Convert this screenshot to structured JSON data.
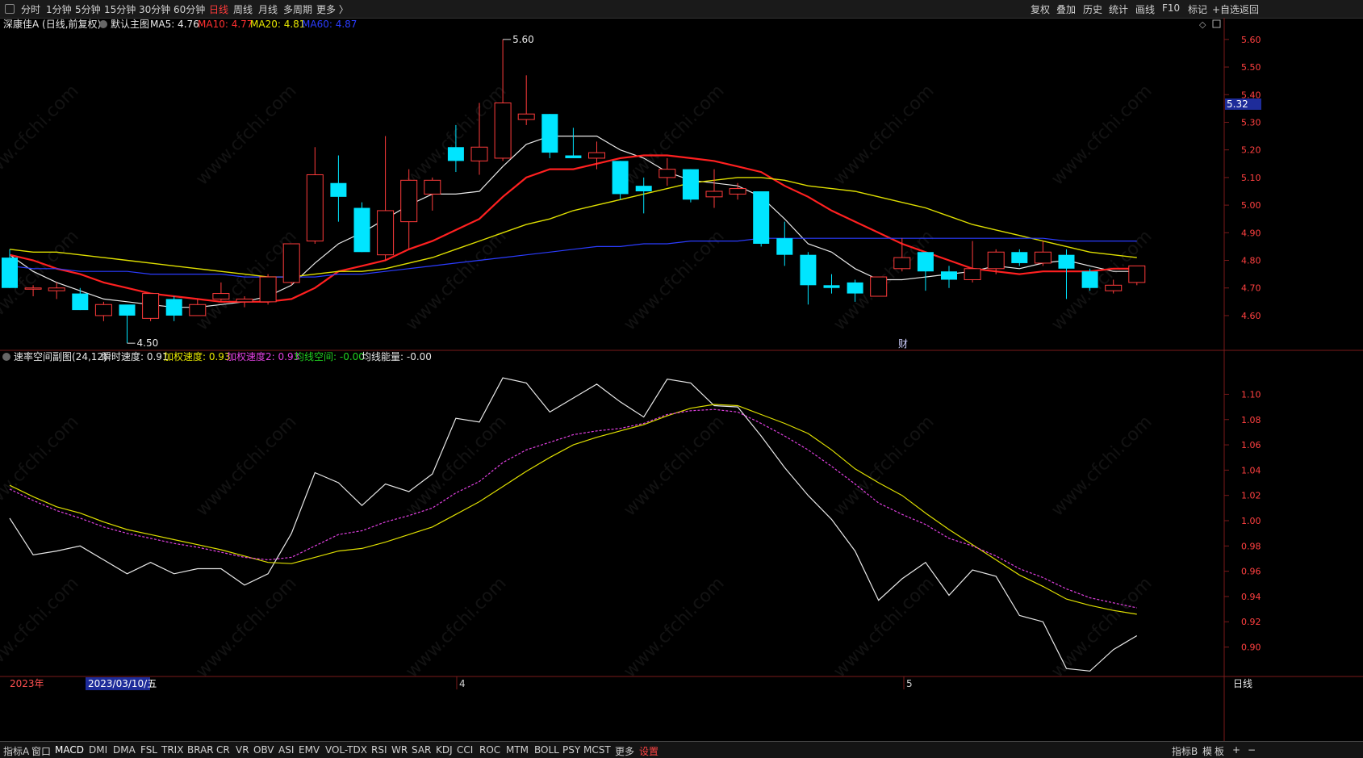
{
  "toolbar": {
    "periods": [
      {
        "label": "分时",
        "active": false
      },
      {
        "label": "1分钟",
        "active": false
      },
      {
        "label": "5分钟",
        "active": false
      },
      {
        "label": "15分钟",
        "active": false
      },
      {
        "label": "30分钟",
        "active": false
      },
      {
        "label": "60分钟",
        "active": false
      },
      {
        "label": "日线",
        "active": true
      },
      {
        "label": "周线",
        "active": false
      },
      {
        "label": "月线",
        "active": false
      },
      {
        "label": "多周期",
        "active": false
      },
      {
        "label": "更多 〉",
        "active": false
      }
    ],
    "right_buttons": [
      "复权",
      "叠加",
      "历史",
      "统计",
      "画线",
      "F10",
      "标记",
      "+自选",
      "返回"
    ]
  },
  "main_panel": {
    "stock_label": "深康佳A (日线,前复权)",
    "main_chart_label": "默认主图",
    "ma_items": [
      {
        "label": "MA5: 4.76",
        "color": "#e8e8e8"
      },
      {
        "label": "MA10: 4.77",
        "color": "#ff3030"
      },
      {
        "label": "MA20: 4.81",
        "color": "#e6e600"
      },
      {
        "label": "MA60: 4.87",
        "color": "#2b3cff"
      }
    ],
    "high_label": "5.60",
    "low_label": "4.50",
    "price_tag": "5.32",
    "event_marker": "财"
  },
  "sub_panel": {
    "indicator_label": "速率空间副图(24,12)",
    "items": [
      {
        "label": "瞬时速度: 0.91",
        "color": "#e8e8e8"
      },
      {
        "label": "加权速度: 0.93",
        "color": "#e6e600"
      },
      {
        "label": "加权速度2: 0.93",
        "color": "#e040e0"
      },
      {
        "label": "均线空间: -0.00",
        "color": "#20d020"
      },
      {
        "label": "均线能量: -0.00",
        "color": "#e8e8e8"
      }
    ]
  },
  "date_axis": {
    "year_label": "2023年",
    "cursor_date": "2023/03/10/五",
    "month_labels": [
      "4",
      "5"
    ]
  },
  "right_axis_label": "日线",
  "watermark": "www.cfchi.com",
  "colors": {
    "up": "#ff3b3b",
    "down": "#00e5ff",
    "ma5": "#e8e8e8",
    "ma10": "#ff2020",
    "ma20": "#dede00",
    "ma60": "#2b3cff",
    "grid_border": "#7a1a1a"
  },
  "chart_data": [
    {
      "type": "candlestick",
      "title": "深康佳A (日线,前复权)",
      "y_ticks": [
        5.6,
        5.5,
        5.4,
        5.3,
        5.2,
        5.1,
        5.0,
        4.9,
        4.8,
        4.7,
        4.6
      ],
      "ylim": [
        4.48,
        5.62
      ],
      "candles": [
        {
          "o": 4.81,
          "h": 4.84,
          "l": 4.7,
          "c": 4.7
        },
        {
          "o": 4.7,
          "h": 4.71,
          "l": 4.67,
          "c": 4.7
        },
        {
          "o": 4.69,
          "h": 4.72,
          "l": 4.66,
          "c": 4.7
        },
        {
          "o": 4.68,
          "h": 4.7,
          "l": 4.62,
          "c": 4.62
        },
        {
          "o": 4.6,
          "h": 4.65,
          "l": 4.58,
          "c": 4.64
        },
        {
          "o": 4.64,
          "h": 4.63,
          "l": 4.5,
          "c": 4.6
        },
        {
          "o": 4.59,
          "h": 4.68,
          "l": 4.58,
          "c": 4.68
        },
        {
          "o": 4.66,
          "h": 4.67,
          "l": 4.58,
          "c": 4.6
        },
        {
          "o": 4.6,
          "h": 4.66,
          "l": 4.6,
          "c": 4.64
        },
        {
          "o": 4.66,
          "h": 4.72,
          "l": 4.65,
          "c": 4.68
        },
        {
          "o": 4.65,
          "h": 4.67,
          "l": 4.63,
          "c": 4.66
        },
        {
          "o": 4.65,
          "h": 4.75,
          "l": 4.64,
          "c": 4.74
        },
        {
          "o": 4.72,
          "h": 4.86,
          "l": 4.71,
          "c": 4.86
        },
        {
          "o": 4.87,
          "h": 5.21,
          "l": 4.86,
          "c": 5.11
        },
        {
          "o": 5.08,
          "h": 5.18,
          "l": 4.94,
          "c": 5.03
        },
        {
          "o": 4.99,
          "h": 5.01,
          "l": 4.83,
          "c": 4.83
        },
        {
          "o": 4.82,
          "h": 5.25,
          "l": 4.8,
          "c": 4.98
        },
        {
          "o": 4.94,
          "h": 5.13,
          "l": 4.84,
          "c": 5.09
        },
        {
          "o": 5.04,
          "h": 5.1,
          "l": 4.98,
          "c": 5.09
        },
        {
          "o": 5.21,
          "h": 5.29,
          "l": 5.12,
          "c": 5.16
        },
        {
          "o": 5.16,
          "h": 5.37,
          "l": 5.11,
          "c": 5.21
        },
        {
          "o": 5.17,
          "h": 5.6,
          "l": 5.16,
          "c": 5.37
        },
        {
          "o": 5.31,
          "h": 5.47,
          "l": 5.29,
          "c": 5.33
        },
        {
          "o": 5.33,
          "h": 5.33,
          "l": 5.17,
          "c": 5.19
        },
        {
          "o": 5.18,
          "h": 5.28,
          "l": 5.17,
          "c": 5.17
        },
        {
          "o": 5.17,
          "h": 5.23,
          "l": 5.13,
          "c": 5.19
        },
        {
          "o": 5.16,
          "h": 5.16,
          "l": 5.02,
          "c": 5.04
        },
        {
          "o": 5.07,
          "h": 5.1,
          "l": 4.97,
          "c": 5.05
        },
        {
          "o": 5.1,
          "h": 5.17,
          "l": 5.07,
          "c": 5.13
        },
        {
          "o": 5.13,
          "h": 5.13,
          "l": 5.01,
          "c": 5.02
        },
        {
          "o": 5.03,
          "h": 5.13,
          "l": 4.99,
          "c": 5.05
        },
        {
          "o": 5.04,
          "h": 5.08,
          "l": 5.02,
          "c": 5.06
        },
        {
          "o": 5.05,
          "h": 5.05,
          "l": 4.85,
          "c": 4.86
        },
        {
          "o": 4.88,
          "h": 4.94,
          "l": 4.78,
          "c": 4.82
        },
        {
          "o": 4.82,
          "h": 4.83,
          "l": 4.64,
          "c": 4.71
        },
        {
          "o": 4.71,
          "h": 4.75,
          "l": 4.68,
          "c": 4.7
        },
        {
          "o": 4.72,
          "h": 4.73,
          "l": 4.65,
          "c": 4.68
        },
        {
          "o": 4.67,
          "h": 4.74,
          "l": 4.67,
          "c": 4.74
        },
        {
          "o": 4.77,
          "h": 4.88,
          "l": 4.76,
          "c": 4.81
        },
        {
          "o": 4.83,
          "h": 4.83,
          "l": 4.69,
          "c": 4.76
        },
        {
          "o": 4.76,
          "h": 4.78,
          "l": 4.7,
          "c": 4.73
        },
        {
          "o": 4.73,
          "h": 4.87,
          "l": 4.72,
          "c": 4.77
        },
        {
          "o": 4.77,
          "h": 4.84,
          "l": 4.75,
          "c": 4.83
        },
        {
          "o": 4.83,
          "h": 4.84,
          "l": 4.78,
          "c": 4.79
        },
        {
          "o": 4.79,
          "h": 4.87,
          "l": 4.78,
          "c": 4.83
        },
        {
          "o": 4.82,
          "h": 4.84,
          "l": 4.66,
          "c": 4.77
        },
        {
          "o": 4.76,
          "h": 4.77,
          "l": 4.69,
          "c": 4.7
        },
        {
          "o": 4.69,
          "h": 4.73,
          "l": 4.68,
          "c": 4.71
        },
        {
          "o": 4.72,
          "h": 4.78,
          "l": 4.71,
          "c": 4.78
        }
      ],
      "ma": [
        {
          "name": "MA5",
          "values": [
            4.82,
            4.76,
            4.72,
            4.69,
            4.66,
            4.65,
            4.64,
            4.63,
            4.63,
            4.64,
            4.65,
            4.67,
            4.71,
            4.79,
            4.86,
            4.9,
            4.95,
            5.0,
            5.04,
            5.04,
            5.05,
            5.14,
            5.22,
            5.25,
            5.25,
            5.25,
            5.2,
            5.17,
            5.12,
            5.09,
            5.08,
            5.07,
            5.03,
            4.95,
            4.86,
            4.83,
            4.77,
            4.73,
            4.73,
            4.74,
            4.75,
            4.76,
            4.78,
            4.77,
            4.79,
            4.8,
            4.78,
            4.76,
            4.76
          ]
        },
        {
          "name": "MA10",
          "values": [
            4.82,
            4.8,
            4.77,
            4.75,
            4.72,
            4.7,
            4.68,
            4.67,
            4.66,
            4.65,
            4.65,
            4.65,
            4.66,
            4.7,
            4.76,
            4.78,
            4.8,
            4.84,
            4.87,
            4.91,
            4.95,
            5.03,
            5.1,
            5.13,
            5.13,
            5.15,
            5.17,
            5.18,
            5.18,
            5.17,
            5.16,
            5.14,
            5.12,
            5.07,
            5.03,
            4.98,
            4.94,
            4.9,
            4.86,
            4.83,
            4.8,
            4.77,
            4.76,
            4.75,
            4.76,
            4.76,
            4.76,
            4.77,
            4.77
          ]
        },
        {
          "name": "MA20",
          "values": [
            4.84,
            4.83,
            4.83,
            4.82,
            4.81,
            4.8,
            4.79,
            4.78,
            4.77,
            4.76,
            4.75,
            4.74,
            4.74,
            4.75,
            4.76,
            4.76,
            4.77,
            4.79,
            4.81,
            4.84,
            4.87,
            4.9,
            4.93,
            4.95,
            4.98,
            5.0,
            5.02,
            5.04,
            5.06,
            5.08,
            5.09,
            5.1,
            5.1,
            5.09,
            5.07,
            5.06,
            5.05,
            5.03,
            5.01,
            4.99,
            4.96,
            4.93,
            4.91,
            4.89,
            4.87,
            4.85,
            4.83,
            4.82,
            4.81
          ]
        },
        {
          "name": "MA60",
          "values": [
            4.78,
            4.77,
            4.77,
            4.76,
            4.76,
            4.76,
            4.75,
            4.75,
            4.75,
            4.75,
            4.74,
            4.74,
            4.74,
            4.74,
            4.75,
            4.75,
            4.76,
            4.77,
            4.78,
            4.79,
            4.8,
            4.81,
            4.82,
            4.83,
            4.84,
            4.85,
            4.85,
            4.86,
            4.86,
            4.87,
            4.87,
            4.87,
            4.88,
            4.88,
            4.88,
            4.88,
            4.88,
            4.88,
            4.88,
            4.88,
            4.88,
            4.88,
            4.88,
            4.88,
            4.88,
            4.87,
            4.87,
            4.87,
            4.87
          ]
        }
      ]
    },
    {
      "type": "line",
      "title": "速率空间副图(24,12)",
      "y_ticks": [
        1.1,
        1.08,
        1.06,
        1.04,
        1.02,
        1.0,
        0.98,
        0.96,
        0.94,
        0.92,
        0.9
      ],
      "ylim": [
        0.878,
        1.122
      ],
      "series": [
        {
          "name": "瞬时速度",
          "values": [
            1.002,
            0.973,
            0.976,
            0.98,
            0.969,
            0.958,
            0.967,
            0.958,
            0.962,
            0.962,
            0.949,
            0.958,
            0.99,
            1.038,
            1.03,
            1.012,
            1.029,
            1.023,
            1.037,
            1.081,
            1.078,
            1.113,
            1.109,
            1.086,
            1.097,
            1.108,
            1.094,
            1.082,
            1.112,
            1.109,
            1.091,
            1.09,
            1.067,
            1.042,
            1.02,
            1.001,
            0.976,
            0.937,
            0.954,
            0.967,
            0.941,
            0.961,
            0.956,
            0.925,
            0.92,
            0.883,
            0.881,
            0.898,
            0.909
          ]
        },
        {
          "name": "加权速度",
          "values": [
            1.028,
            1.019,
            1.011,
            1.006,
            0.999,
            0.993,
            0.989,
            0.985,
            0.981,
            0.977,
            0.972,
            0.967,
            0.966,
            0.971,
            0.976,
            0.978,
            0.983,
            0.989,
            0.995,
            1.005,
            1.015,
            1.027,
            1.039,
            1.05,
            1.06,
            1.066,
            1.071,
            1.076,
            1.083,
            1.089,
            1.092,
            1.091,
            1.084,
            1.077,
            1.069,
            1.056,
            1.041,
            1.03,
            1.02,
            1.006,
            0.993,
            0.981,
            0.969,
            0.957,
            0.948,
            0.938,
            0.933,
            0.929,
            0.926
          ]
        },
        {
          "name": "加权速度2",
          "values": [
            1.025,
            1.016,
            1.008,
            1.002,
            0.995,
            0.99,
            0.986,
            0.982,
            0.979,
            0.975,
            0.971,
            0.969,
            0.971,
            0.98,
            0.989,
            0.992,
            0.999,
            1.004,
            1.01,
            1.022,
            1.031,
            1.046,
            1.056,
            1.062,
            1.068,
            1.071,
            1.073,
            1.077,
            1.084,
            1.087,
            1.088,
            1.086,
            1.077,
            1.067,
            1.056,
            1.043,
            1.029,
            1.014,
            1.005,
            0.997,
            0.986,
            0.98,
            0.972,
            0.962,
            0.955,
            0.946,
            0.939,
            0.935,
            0.931
          ]
        }
      ]
    }
  ]
}
